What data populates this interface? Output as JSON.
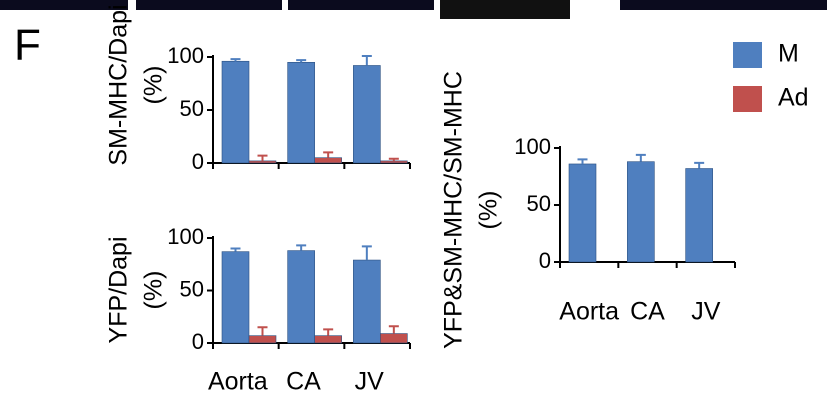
{
  "panel_label": "F",
  "chart_data": [
    {
      "type": "bar",
      "ylabel": "SM-MHC/Dapi",
      "yunit": "(%)",
      "categories": [
        null,
        null,
        null
      ],
      "series": [
        {
          "name": "M",
          "color": "#4f7fbf",
          "values": [
            96,
            95,
            92
          ],
          "errors": [
            2,
            2,
            9
          ]
        },
        {
          "name": "Ad",
          "color": "#c0504d",
          "values": [
            2,
            5,
            2
          ],
          "errors": [
            5,
            5,
            2
          ]
        }
      ],
      "ylim": [
        0,
        100
      ],
      "yticks": [
        0,
        50,
        100
      ]
    },
    {
      "type": "bar",
      "ylabel": "YFP/Dapi",
      "yunit": "(%)",
      "categories": [
        "Aorta",
        "CA",
        "JV"
      ],
      "series": [
        {
          "color": "#4f7fbf",
          "values": [
            87,
            88,
            79
          ],
          "errors": [
            3,
            5,
            13
          ]
        },
        {
          "color": "#c0504d",
          "values": [
            7,
            7,
            9
          ],
          "errors": [
            8,
            6,
            7
          ]
        }
      ],
      "ylim": [
        0,
        100
      ],
      "yticks": [
        0,
        50,
        100
      ]
    },
    {
      "type": "bar",
      "ylabel": "YFP&SM-MHC/SM-MHC",
      "yunit": "(%)",
      "categories": [
        "Aorta",
        "CA",
        "JV"
      ],
      "series": [
        {
          "color": "#4f7fbf",
          "values": [
            86,
            88,
            82
          ],
          "errors": [
            4,
            6,
            5
          ]
        }
      ],
      "ylim": [
        0,
        100
      ],
      "yticks": [
        0,
        50,
        100
      ]
    }
  ]
}
